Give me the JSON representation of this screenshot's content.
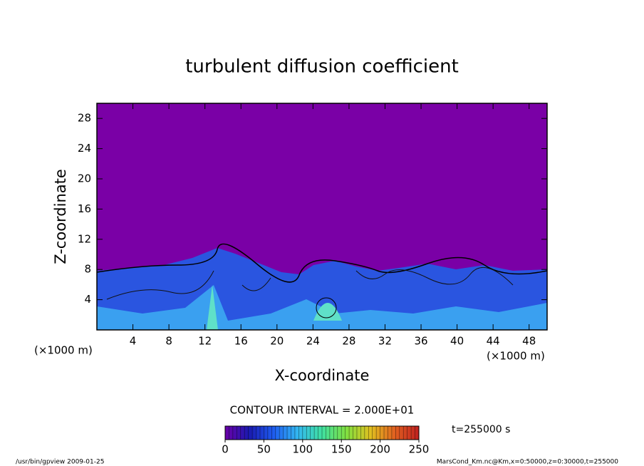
{
  "chart_data": {
    "type": "contour",
    "title": "turbulent diffusion coefficient",
    "x_label": "X-coordinate",
    "y_label": "Z-coordinate",
    "x_unit": "(×1000 m)",
    "y_unit": "(×1000 m)",
    "xlim": [
      0,
      50
    ],
    "xticks": [
      4,
      8,
      12,
      16,
      20,
      24,
      28,
      32,
      36,
      40,
      44,
      48
    ],
    "ylim": [
      0,
      30
    ],
    "yticks": [
      4,
      8,
      12,
      16,
      20,
      24,
      28
    ],
    "background_color": "#7a00a6",
    "contour_interval": "CONTOUR INTERVAL = 2.000E+01",
    "colorbar": {
      "lim": [
        0,
        250
      ],
      "ticks": [
        0,
        50,
        100,
        150,
        200,
        250
      ],
      "colors": [
        "#6a00a8",
        "#1a1ab0",
        "#1e5cf0",
        "#33b8f0",
        "#40e0a0",
        "#80e040",
        "#e0c020",
        "#e06020",
        "#c02020"
      ]
    },
    "time_label": "t=255000 s",
    "footer_left": "/usr/bin/gpview  2009-01-25",
    "footer_right": "MarsCond_Km.nc@Km,x=0:50000,z=0:30000,t=255000"
  }
}
